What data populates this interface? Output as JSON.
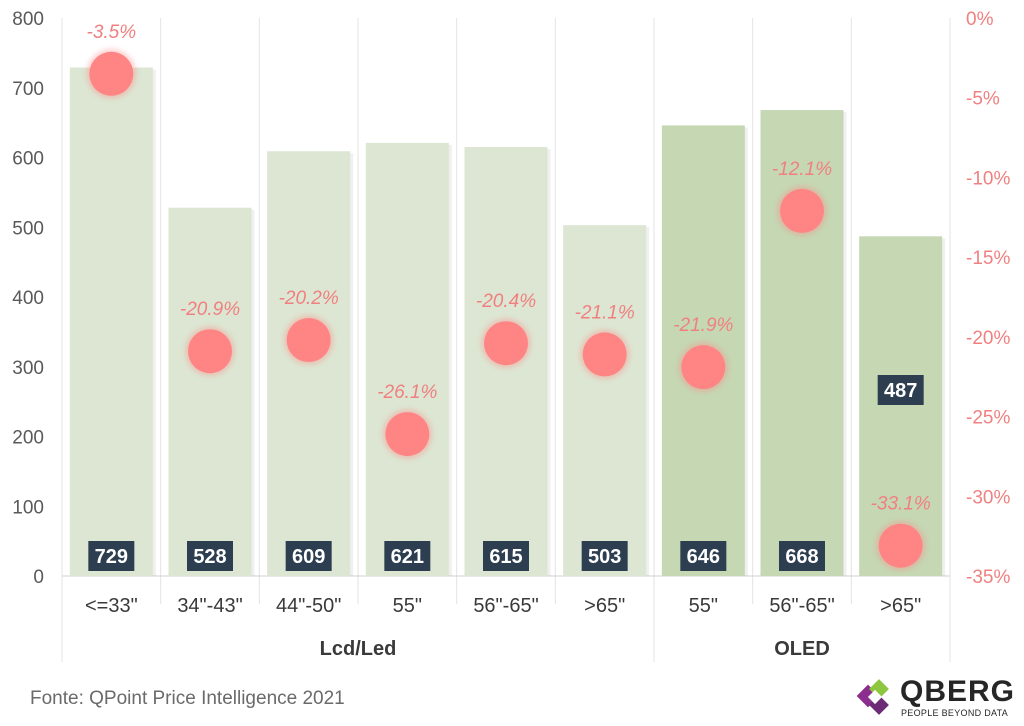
{
  "chart_data": {
    "type": "bar",
    "categories": [
      "<=33\"",
      "34\"-43\"",
      "44\"-50\"",
      "55\"",
      "56\"-65\"",
      ">65\"",
      "55\"",
      "56\"-65\"",
      ">65\""
    ],
    "groups": [
      {
        "label": "Lcd/Led",
        "count": 6
      },
      {
        "label": "OLED",
        "count": 3
      }
    ],
    "series": [
      {
        "values": [
          729,
          528,
          609,
          621,
          615,
          503,
          646,
          668,
          487
        ],
        "axis": "left",
        "kind": "bar"
      },
      {
        "values": [
          -3.5,
          -20.9,
          -20.2,
          -26.1,
          -20.4,
          -21.1,
          -21.9,
          -12.1,
          -33.1
        ],
        "axis": "right",
        "kind": "bubble"
      }
    ],
    "bar_labels": [
      "729",
      "528",
      "609",
      "621",
      "615",
      "503",
      "646",
      "668",
      "487"
    ],
    "pct_labels": [
      "-3.5%",
      "-20.9%",
      "-20.2%",
      "-26.1%",
      "-20.4%",
      "-21.1%",
      "-21.9%",
      "-12.1%",
      "-33.1%"
    ],
    "y_left": {
      "ticks": [
        "0",
        "100",
        "200",
        "300",
        "400",
        "500",
        "600",
        "700",
        "800"
      ],
      "ylim": [
        0,
        800
      ]
    },
    "y_right": {
      "ticks": [
        "0%",
        "-5%",
        "-10%",
        "-15%",
        "-20%",
        "-25%",
        "-30%",
        "-35%"
      ],
      "ylim": [
        -35,
        0
      ]
    },
    "grid": "vertical",
    "colors": {
      "bar_lcd": "#dce6d2",
      "bar_oled": "#c5d7b3",
      "bubble": "#ff8585",
      "pct_text": "#f08080",
      "label_box": "#2c3e50",
      "axis_text": "#595959"
    }
  },
  "footer": {
    "source": "Fonte: QPoint Price Intelligence 2021"
  },
  "logo": {
    "name": "QBERG",
    "tagline": "PEOPLE BEYOND DATA"
  }
}
